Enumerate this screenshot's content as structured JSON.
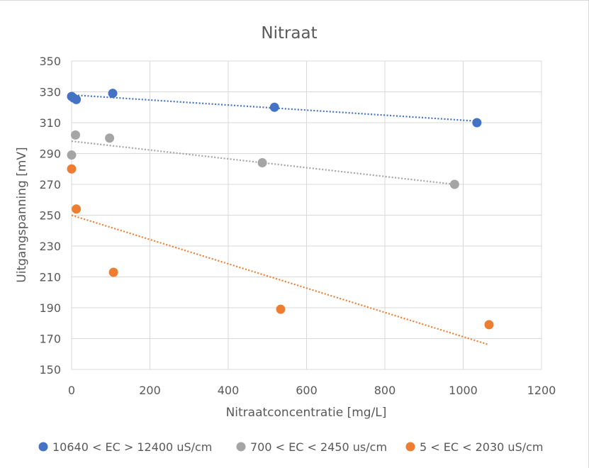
{
  "chart_data": {
    "type": "scatter",
    "title": "Nitraat",
    "xlabel": "Nitraatconcentratie [mg/L]",
    "ylabel": "Uitgangspanning [mV]",
    "xlim": [
      0,
      1200
    ],
    "ylim": [
      150,
      350
    ],
    "x_ticks": [
      "0",
      "200",
      "400",
      "600",
      "800",
      "1000",
      "1200"
    ],
    "y_ticks": [
      "150",
      "170",
      "190",
      "210",
      "230",
      "250",
      "270",
      "290",
      "310",
      "330",
      "350"
    ],
    "grid": "vertical and horizontal major gridlines",
    "legend_position": "bottom",
    "series": [
      {
        "name": "10640 < EC > 12400 uS/cm",
        "color": "#4472c4",
        "points": [
          [
            0,
            327
          ],
          [
            5,
            326
          ],
          [
            12,
            325
          ],
          [
            105,
            329
          ],
          [
            518,
            320
          ],
          [
            1035,
            310
          ]
        ],
        "trendline": {
          "style": "dotted",
          "x": [
            0,
            1035
          ],
          "y": [
            328,
            311
          ]
        }
      },
      {
        "name": "700 < EC < 2450 us/cm",
        "color": "#a5a5a5",
        "points": [
          [
            0,
            289
          ],
          [
            10,
            302
          ],
          [
            97,
            300
          ],
          [
            487,
            284
          ],
          [
            978,
            270
          ]
        ],
        "trendline": {
          "style": "dotted",
          "x": [
            0,
            978
          ],
          "y": [
            298,
            270
          ]
        }
      },
      {
        "name": "5 < EC < 2030 uS/cm",
        "color": "#ed7d31",
        "points": [
          [
            0,
            280
          ],
          [
            12,
            254
          ],
          [
            107,
            213
          ],
          [
            534,
            189
          ],
          [
            1066,
            179
          ]
        ],
        "trendline": {
          "style": "dotted",
          "x": [
            0,
            1066
          ],
          "y": [
            250,
            166
          ]
        }
      }
    ]
  }
}
